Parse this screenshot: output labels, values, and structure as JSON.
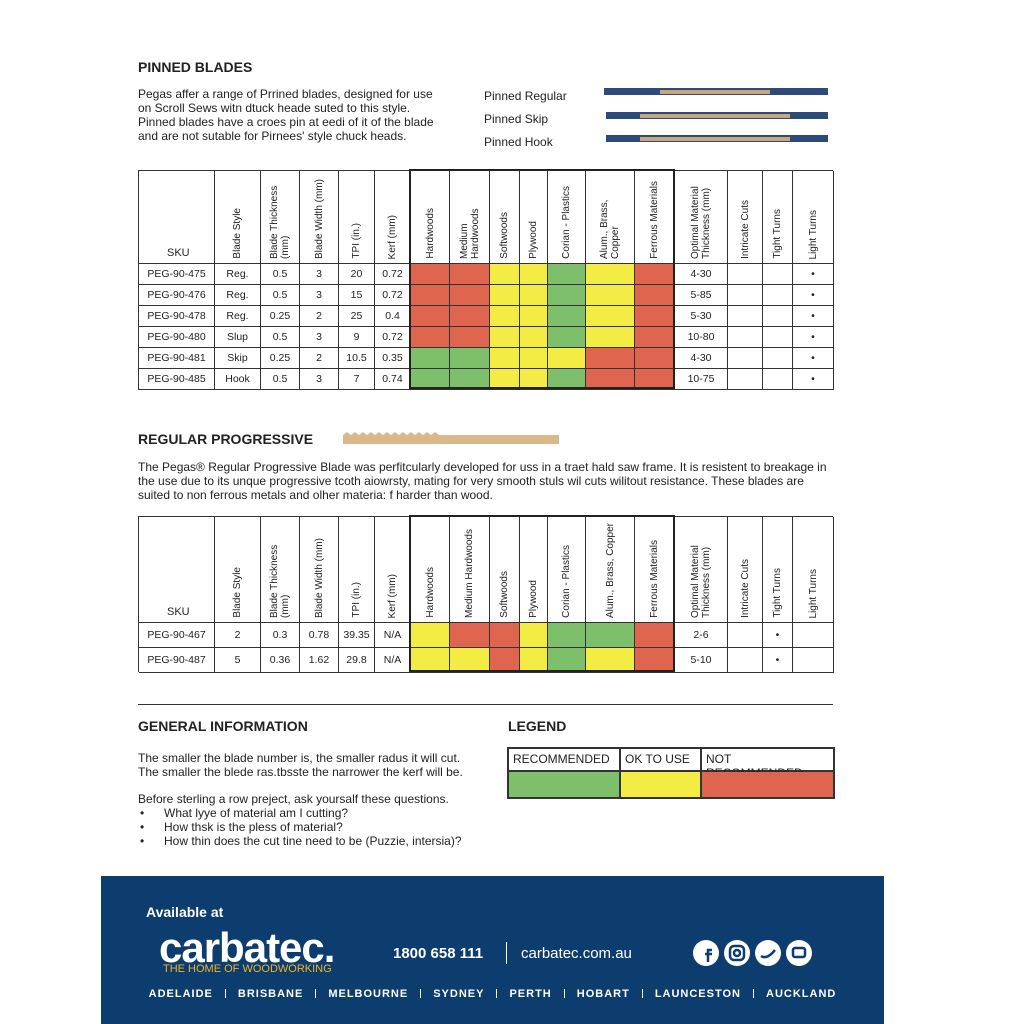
{
  "pinned": {
    "title": "PINNED BLADES",
    "paragraph": [
      "Pegas affer a range of Prrined blades, designed for use",
      "on Scroll Sews witn dtuck heade suted to this style.",
      "Pinned blades have a croes pin at eedi of it of the blade",
      "and are not sutable for Pirnees' style chuck heads."
    ],
    "blades": [
      "Pinned Regular",
      "Pinned Skip",
      "Pinned Hook"
    ]
  },
  "table1": {
    "headers": [
      "SKU",
      "Blade Style",
      "Blade Thickness (mm)",
      "Blade Width (mm)",
      "TPI (in.)",
      "Kerf (mm)",
      "Hardwoods",
      "Medium Hardwoods",
      "Softwoods",
      "Plywood",
      "Corian - Plastics",
      "Alum., Brass, Copper",
      "Ferrous Materials",
      "Optimal Material Thickness (mm)",
      "Intricate Cuts",
      "Tight Turns",
      "Light Turns"
    ],
    "rows": [
      {
        "cells": [
          "PEG-90-475",
          "Reg.",
          "0.5",
          "3",
          "20",
          "0.72"
        ],
        "ratings": [
          "#e0654f",
          "#e0654f",
          "#f2ec45",
          "#f2ec45",
          "#7dbf6a",
          "#f2ec45",
          "#e0654f"
        ],
        "extra": [
          "4-30",
          null,
          null,
          "•"
        ]
      },
      {
        "cells": [
          "PEG-90-476",
          "Reg.",
          "0.5",
          "3",
          "15",
          "0.72"
        ],
        "ratings": [
          "#e0654f",
          "#e0654f",
          "#f2ec45",
          "#f2ec45",
          "#7dbf6a",
          "#f2ec45",
          "#e0654f"
        ],
        "extra": [
          "5-85",
          null,
          null,
          "•"
        ]
      },
      {
        "cells": [
          "PEG-90-478",
          "Reg.",
          "0.25",
          "2",
          "25",
          "0.4"
        ],
        "ratings": [
          "#e0654f",
          "#e0654f",
          "#f2ec45",
          "#f2ec45",
          "#7dbf6a",
          "#f2ec45",
          "#e0654f"
        ],
        "extra": [
          "5-30",
          null,
          null,
          "•"
        ]
      },
      {
        "cells": [
          "PEG-90-480",
          "Slup",
          "0.5",
          "3",
          "9",
          "0.72"
        ],
        "ratings": [
          "#e0654f",
          "#e0654f",
          "#f2ec45",
          "#f2ec45",
          "#7dbf6a",
          "#f2ec45",
          "#e0654f"
        ],
        "extra": [
          "10-80",
          null,
          null,
          "•"
        ]
      },
      {
        "cells": [
          "PEG-90-481",
          "Skip",
          "0.25",
          "2",
          "10.5",
          "0.35"
        ],
        "ratings": [
          "#7dbf6a",
          "#7dbf6a",
          "#f2ec45",
          "#f2ec45",
          "#f2ec45",
          "#e0654f",
          "#e0654f"
        ],
        "extra": [
          "4-30",
          null,
          null,
          "•"
        ]
      },
      {
        "cells": [
          "PEG-90-485",
          "Hook",
          "0.5",
          "3",
          "7",
          "0.74"
        ],
        "ratings": [
          "#7dbf6a",
          "#7dbf6a",
          "#f2ec45",
          "#f2ec45",
          "#7dbf6a",
          "#e0654f",
          "#e0654f"
        ],
        "extra": [
          "10-75",
          null,
          null,
          "•"
        ]
      }
    ]
  },
  "progressive": {
    "title": "REGULAR PROGRESSIVE",
    "paragraph": [
      "The Pegas® Regular Progressive Blade was perfitcularly developed for uss in a traet hald saw frame. It is resistent to breakage in",
      "the use due to its unque progressive tcoth aiowrsty, mating for very smooth stuls wil cuts wilitout resistance. These blades are",
      "suited to non ferrous metals and olher materia: f harder than wood."
    ]
  },
  "table2": {
    "headers": [
      "SKU",
      "Blade Style",
      "Blade Thickness (mm)",
      "Blade Width (mm)",
      "TPI (in.)",
      "Kerf (mm)",
      "Hardwoods",
      "Medium Hardwoods",
      "Softwoods",
      "Plywood",
      "Corian - Plastics",
      "Alum., Brass, Copper",
      "Ferrous Materials",
      "Optimal Material Thickness (mm)",
      "Intricate Cuts",
      "Tight Turns",
      "Light Turns"
    ],
    "rows": [
      {
        "cells": [
          "PEG-90-467",
          "2",
          "0.3",
          "0.78",
          "39.35",
          "N/A"
        ],
        "ratings": [
          "#f2ec45",
          "#e0654f",
          "#e0654f",
          "#f2ec45",
          "#7dbf6a",
          "#7dbf6a",
          "#e0654f"
        ],
        "extra": [
          "2-6",
          null,
          "•",
          null
        ]
      },
      {
        "cells": [
          "PEG-90-487",
          "5",
          "0.36",
          "1.62",
          "29.8",
          "N/A"
        ],
        "ratings": [
          "#f2ec45",
          "#f2ec45",
          "#e0654f",
          "#f2ec45",
          "#7dbf6a",
          "#f2ec45",
          "#e0654f"
        ],
        "extra": [
          "5-10",
          null,
          "•",
          null
        ]
      }
    ]
  },
  "general": {
    "title": "GENERAL INFORMATION",
    "lines": [
      "The smaller the blade number is, the smaller radus it will cut.",
      "The smaller the blede ras.tbsste the narrower the kerf will be."
    ],
    "intro": "Before sterling a row preject, ask yoursalf these questions.",
    "bullets": [
      "What lyye of material am I cutting?",
      "How thsk is the pless of material?",
      "How thin does the cut tine need to be (Puzzie, intersia)?"
    ]
  },
  "legend": {
    "title": "LEGEND",
    "items": [
      {
        "label": "RECOMMENDED",
        "color": "#7dbf6a"
      },
      {
        "label": "OK TO USE",
        "color": "#f2ec45"
      },
      {
        "label": "NOT RECOMMENDED",
        "color": "#e0654f"
      }
    ]
  },
  "footer": {
    "available": "Available at",
    "brand": "carbatec.",
    "tagline": "THE HOME OF WOODWORKING",
    "phone": "1800 658 111",
    "site": "carbatec.com.au",
    "cities": [
      "ADELAIDE",
      "BRISBANE",
      "MELBOURNE",
      "SYDNEY",
      "PERTH",
      "HOBART",
      "LAUNCESTON",
      "AUCKLAND"
    ]
  }
}
